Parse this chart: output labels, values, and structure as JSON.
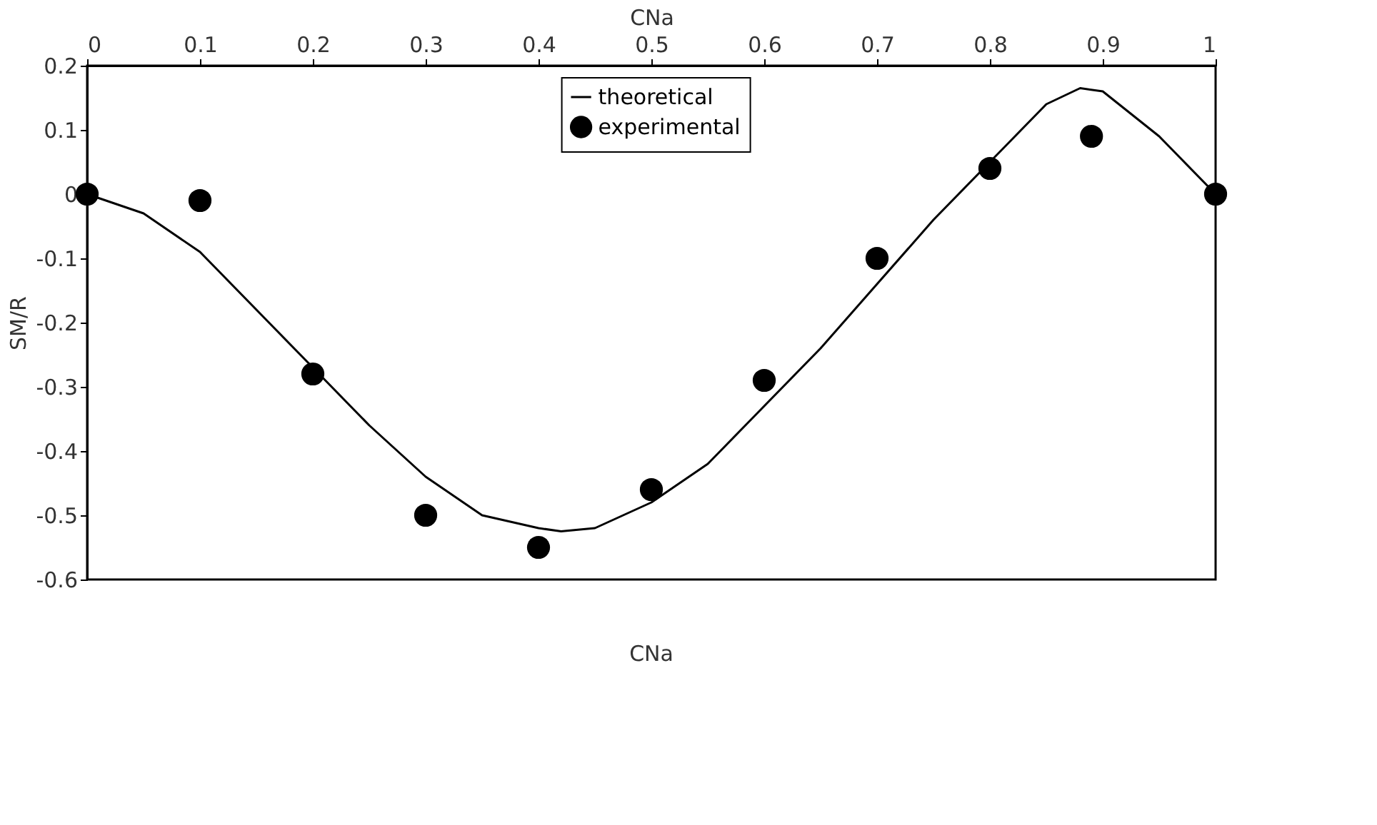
{
  "chart_data": {
    "type": "scatter",
    "xlabel": "CNa",
    "ylabel": "SM/R",
    "annotations": [
      "CNa"
    ],
    "xlim": [
      0,
      1
    ],
    "xticks": [
      0,
      0.1,
      0.2,
      0.3,
      0.4,
      0.5,
      0.6,
      0.7,
      0.8,
      0.9,
      1
    ],
    "ylim": [
      -0.6,
      0.2
    ],
    "yticks": [
      -0.6,
      -0.5,
      -0.4,
      -0.3,
      -0.2,
      -0.1,
      0,
      0.1,
      0.2
    ],
    "grid": false,
    "legend": "top",
    "series": [
      {
        "name": "theoretical",
        "type": "line",
        "color": "#000000",
        "marker": "none",
        "line_style": "solid",
        "x": [
          0,
          0.05,
          0.1,
          0.15,
          0.2,
          0.25,
          0.3,
          0.35,
          0.4,
          0.42,
          0.45,
          0.5,
          0.55,
          0.6,
          0.65,
          0.7,
          0.75,
          0.8,
          0.85,
          0.88,
          0.9,
          0.95,
          1
        ],
        "values": [
          0,
          -0.03,
          -0.09,
          -0.18,
          -0.27,
          -0.36,
          -0.44,
          -0.5,
          -0.52,
          -0.525,
          -0.52,
          -0.48,
          -0.42,
          -0.33,
          -0.24,
          -0.14,
          -0.04,
          0.05,
          0.14,
          0.165,
          0.16,
          0.09,
          0
        ]
      },
      {
        "name": "experimental",
        "color": "#000000",
        "marker": "circle",
        "x": [
          0,
          0.1,
          0.2,
          0.3,
          0.4,
          0.5,
          0.6,
          0.7,
          0.8,
          0.89,
          1
        ],
        "values": [
          0,
          -0.01,
          -0.28,
          -0.5,
          -0.55,
          -0.46,
          -0.29,
          -0.1,
          0.04,
          0.09,
          0
        ]
      }
    ]
  }
}
